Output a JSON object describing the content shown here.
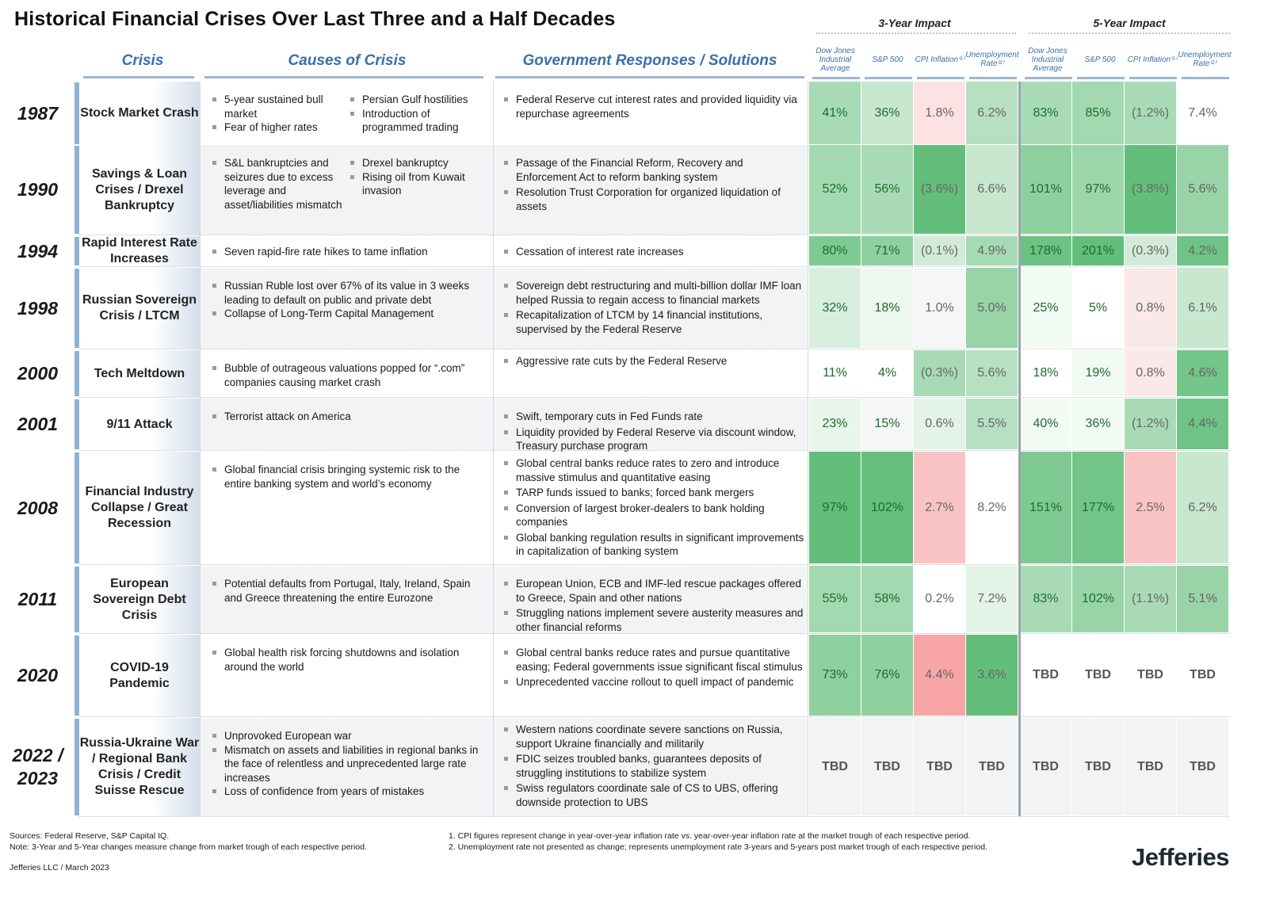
{
  "title": "Historical Financial Crises Over Last Three and a Half Decades",
  "groups": {
    "three_year": "3-Year Impact",
    "five_year": "5-Year Impact"
  },
  "headers": {
    "crisis": "Crisis",
    "causes": "Causes of Crisis",
    "responses": "Government Responses / Solutions",
    "dow": "Dow Jones Industrial Average",
    "sp": "S&P 500",
    "cpi": "CPI Inflation⁽¹⁾",
    "unemp": "Unemployment Rate⁽²⁾"
  },
  "colors": {
    "header_blue": "#3a6fa8",
    "green_dark": "#63be7b",
    "pink": "#f8a5a8"
  },
  "rows": [
    {
      "year": "1987",
      "crisis": "Stock Market Crash",
      "causes_left": [
        "5-year sustained bull market",
        "Fear of higher rates"
      ],
      "causes_right": [
        "Persian Gulf hostilities",
        "Introduction of programmed trading"
      ],
      "responses": [
        "Federal Reserve cut interest rates and provided liquidity via repurchase agreements"
      ],
      "values": [
        "41%",
        "36%",
        "1.8%",
        "6.2%",
        "83%",
        "85%",
        "(1.2%)",
        "7.4%"
      ],
      "colors": [
        "#a8dbb5",
        "#c7e7cf",
        "#fde2e3",
        "#b6e0c1",
        "#a8dbb5",
        "#a3d9b0",
        "#a8dbb5",
        "#ffffff"
      ]
    },
    {
      "year": "1990",
      "crisis": "Savings & Loan Crises / Drexel Bankruptcy",
      "causes_left": [
        "S&L bankruptcies and seizures due to excess leverage and asset/liabilities mismatch"
      ],
      "causes_right": [
        "Drexel bankruptcy",
        "Rising oil from Kuwait invasion"
      ],
      "responses": [
        "Passage of the Financial Reform, Recovery and Enforcement Act to reform banking system",
        "Resolution Trust Corporation for organized liquidation of assets"
      ],
      "values": [
        "52%",
        "56%",
        "(3.6%)",
        "6.6%",
        "101%",
        "97%",
        "(3.8%)",
        "5.6%"
      ],
      "colors": [
        "#a3d9b0",
        "#a8dbb5",
        "#63be7b",
        "#c7e7cf",
        "#8fd09f",
        "#9bd5a9",
        "#63be7b",
        "#98d4a7"
      ]
    },
    {
      "year": "1994",
      "crisis": "Rapid Interest Rate Increases",
      "causes_left": [
        "Seven rapid-fire rate hikes to tame inflation"
      ],
      "causes_right": [],
      "responses": [
        "Cessation of interest rate increases"
      ],
      "values": [
        "80%",
        "71%",
        "(0.1%)",
        "4.9%",
        "178%",
        "201%",
        "(0.3%)",
        "4.2%"
      ],
      "colors": [
        "#7fc992",
        "#8fd09f",
        "#d2ebd8",
        "#a6dab3",
        "#6cc283",
        "#63be7b",
        "#d2ebd8",
        "#6fc386"
      ]
    },
    {
      "year": "1998",
      "crisis": "Russian Sovereign Crisis / LTCM",
      "causes_left": [
        "Russian Ruble lost over 67% of its value in 3 weeks leading to default on public and private debt",
        "Collapse of Long-Term Capital Management"
      ],
      "causes_right": [],
      "responses": [
        "Sovereign debt restructuring and multi-billion dollar IMF loan helped Russia to regain access to financial markets",
        "Recapitalization of LTCM by 14 financial institutions, supervised by the Federal Reserve"
      ],
      "values": [
        "32%",
        "18%",
        "1.0%",
        "5.0%",
        "25%",
        "5%",
        "0.8%",
        "6.1%"
      ],
      "colors": [
        "#d8eedf",
        "#ecf7ef",
        "#f4f6f7",
        "#98d4a7",
        "#f2faf4",
        "#ffffff",
        "#fbe8e9",
        "#c7e7cf"
      ]
    },
    {
      "year": "2000",
      "crisis": "Tech Meltdown",
      "causes_left": [
        "Bubble of outrageous valuations popped for “.com” companies causing market crash"
      ],
      "causes_right": [],
      "responses": [
        "Aggressive rate cuts by the Federal Reserve"
      ],
      "values": [
        "11%",
        "4%",
        "(0.3%)",
        "5.6%",
        "18%",
        "19%",
        "0.8%",
        "4.6%"
      ],
      "colors": [
        "#ffffff",
        "#ffffff",
        "#a8dbb5",
        "#b6e0c1",
        "#ffffff",
        "#f2faf4",
        "#fbe8e9",
        "#74c588"
      ]
    },
    {
      "year": "2001",
      "crisis": "9/11 Attack",
      "causes_left": [
        "Terrorist attack on America"
      ],
      "causes_right": [],
      "responses": [
        "Swift, temporary cuts in Fed Funds rate",
        "Liquidity provided by Federal Reserve via discount window, Treasury purchase program"
      ],
      "values": [
        "23%",
        "15%",
        "0.6%",
        "5.5%",
        "40%",
        "36%",
        "(1.2%)",
        "4.4%"
      ],
      "colors": [
        "#e8f5eb",
        "#f4f6f7",
        "#e3f3e7",
        "#b6e0c1",
        "#f2faf4",
        "#f2faf4",
        "#a8dbb5",
        "#6fc386"
      ]
    },
    {
      "year": "2008",
      "crisis": "Financial Industry Collapse / Great Recession",
      "causes_left": [
        "Global financial crisis bringing systemic risk to the entire banking system and world’s economy"
      ],
      "causes_right": [],
      "responses": [
        "Global central banks reduce rates to zero and introduce massive stimulus and quantitative easing",
        "TARP funds issued to banks; forced bank mergers",
        "Conversion of largest broker-dealers to bank holding companies",
        "Global banking regulation results in significant improvements in capitalization of banking system"
      ],
      "values": [
        "97%",
        "102%",
        "2.7%",
        "8.2%",
        "151%",
        "177%",
        "2.5%",
        "6.2%"
      ],
      "colors": [
        "#63be7b",
        "#66bf7d",
        "#f9c3c5",
        "#ffffff",
        "#7fc992",
        "#72c487",
        "#f9c3c5",
        "#c7e7cf"
      ]
    },
    {
      "year": "2011",
      "crisis": "European Sovereign Debt Crisis",
      "causes_left": [
        "Potential defaults from Portugal, Italy, Ireland, Spain and Greece threatening the entire Eurozone"
      ],
      "causes_right": [],
      "responses": [
        "European Union, ECB and IMF-led rescue packages offered to Greece, Spain and other nations",
        "Struggling nations implement severe austerity measures and other financial reforms"
      ],
      "values": [
        "55%",
        "58%",
        "0.2%",
        "7.2%",
        "83%",
        "102%",
        "(1.1%)",
        "5.1%"
      ],
      "colors": [
        "#a3d9b0",
        "#a3d9b0",
        "#ffffff",
        "#e3f3e7",
        "#a8dbb5",
        "#98d4a7",
        "#a8dbb5",
        "#98d4a7"
      ]
    },
    {
      "year": "2020",
      "crisis": "COVID-19 Pandemic",
      "causes_left": [
        "Global health risk forcing shutdowns and isolation around the world"
      ],
      "causes_right": [],
      "responses": [
        "Global central banks reduce rates and pursue quantitative easing; Federal governments issue significant fiscal stimulus",
        "Unprecedented vaccine rollout to quell impact of pandemic"
      ],
      "values": [
        "73%",
        "76%",
        "4.4%",
        "3.6%",
        "TBD",
        "TBD",
        "TBD",
        "TBD"
      ],
      "colors": [
        "#8fd09f",
        "#8fd09f",
        "#f8a5a8",
        "#63be7b",
        "#ffffff",
        "#ffffff",
        "#ffffff",
        "#ffffff"
      ]
    },
    {
      "year": "2022 / 2023",
      "crisis": "Russia-Ukraine War / Regional Bank Crisis / Credit Suisse Rescue",
      "causes_left": [
        "Unprovoked European war",
        "Mismatch on assets and liabilities in regional banks in the face of relentless and unprecedented large rate increases",
        "Loss of confidence from years of mistakes"
      ],
      "causes_right": [],
      "responses": [
        "Western nations coordinate severe sanctions on Russia, support Ukraine financially and militarily",
        "FDIC seizes troubled banks, guarantees deposits of struggling institutions to stabilize system",
        "Swiss regulators coordinate sale of CS to UBS, offering downside protection to UBS"
      ],
      "values": [
        "TBD",
        "TBD",
        "TBD",
        "TBD",
        "TBD",
        "TBD",
        "TBD",
        "TBD"
      ],
      "colors": [
        "#f2f3f4",
        "#f2f3f4",
        "#f2f3f4",
        "#f2f3f4",
        "#f2f3f4",
        "#f2f3f4",
        "#f2f3f4",
        "#f2f3f4"
      ]
    }
  ],
  "footer": {
    "sources": "Sources: Federal Reserve, S&P Capital IQ.",
    "note": "Note: 3-Year and 5-Year changes measure change from market trough of each respective period.",
    "footnote1": "1. CPI figures represent change in year-over-year inflation rate vs. year-over-year inflation rate at the market trough of each respective period.",
    "footnote2": "2. Unemployment rate not presented as change; represents unemployment rate 3-years and 5-years post market trough of each respective period.",
    "credit": "Jefferies LLC / March 2023",
    "logo": "Jefferies"
  }
}
